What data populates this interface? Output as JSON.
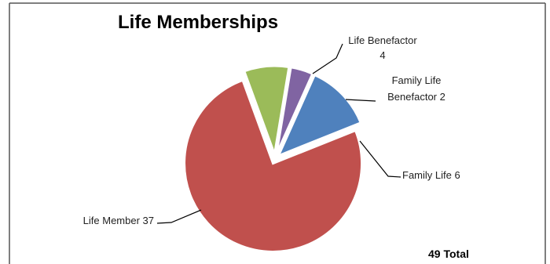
{
  "chart_data": {
    "type": "pie",
    "title": "Life Memberships",
    "slices": [
      {
        "label_lines": [
          "Life Benefactor",
          "4"
        ],
        "value": 4,
        "color": "#9bbb59"
      },
      {
        "label_lines": [
          "Family Life",
          "Benefactor 2"
        ],
        "value": 2,
        "color": "#8064a2"
      },
      {
        "label_lines": [
          "Family Life 6"
        ],
        "value": 6,
        "color": "#4f81bd"
      },
      {
        "label_lines": [
          "Life Member 37"
        ],
        "value": 37,
        "color": "#c0504d"
      }
    ],
    "total_label": "49 Total"
  }
}
